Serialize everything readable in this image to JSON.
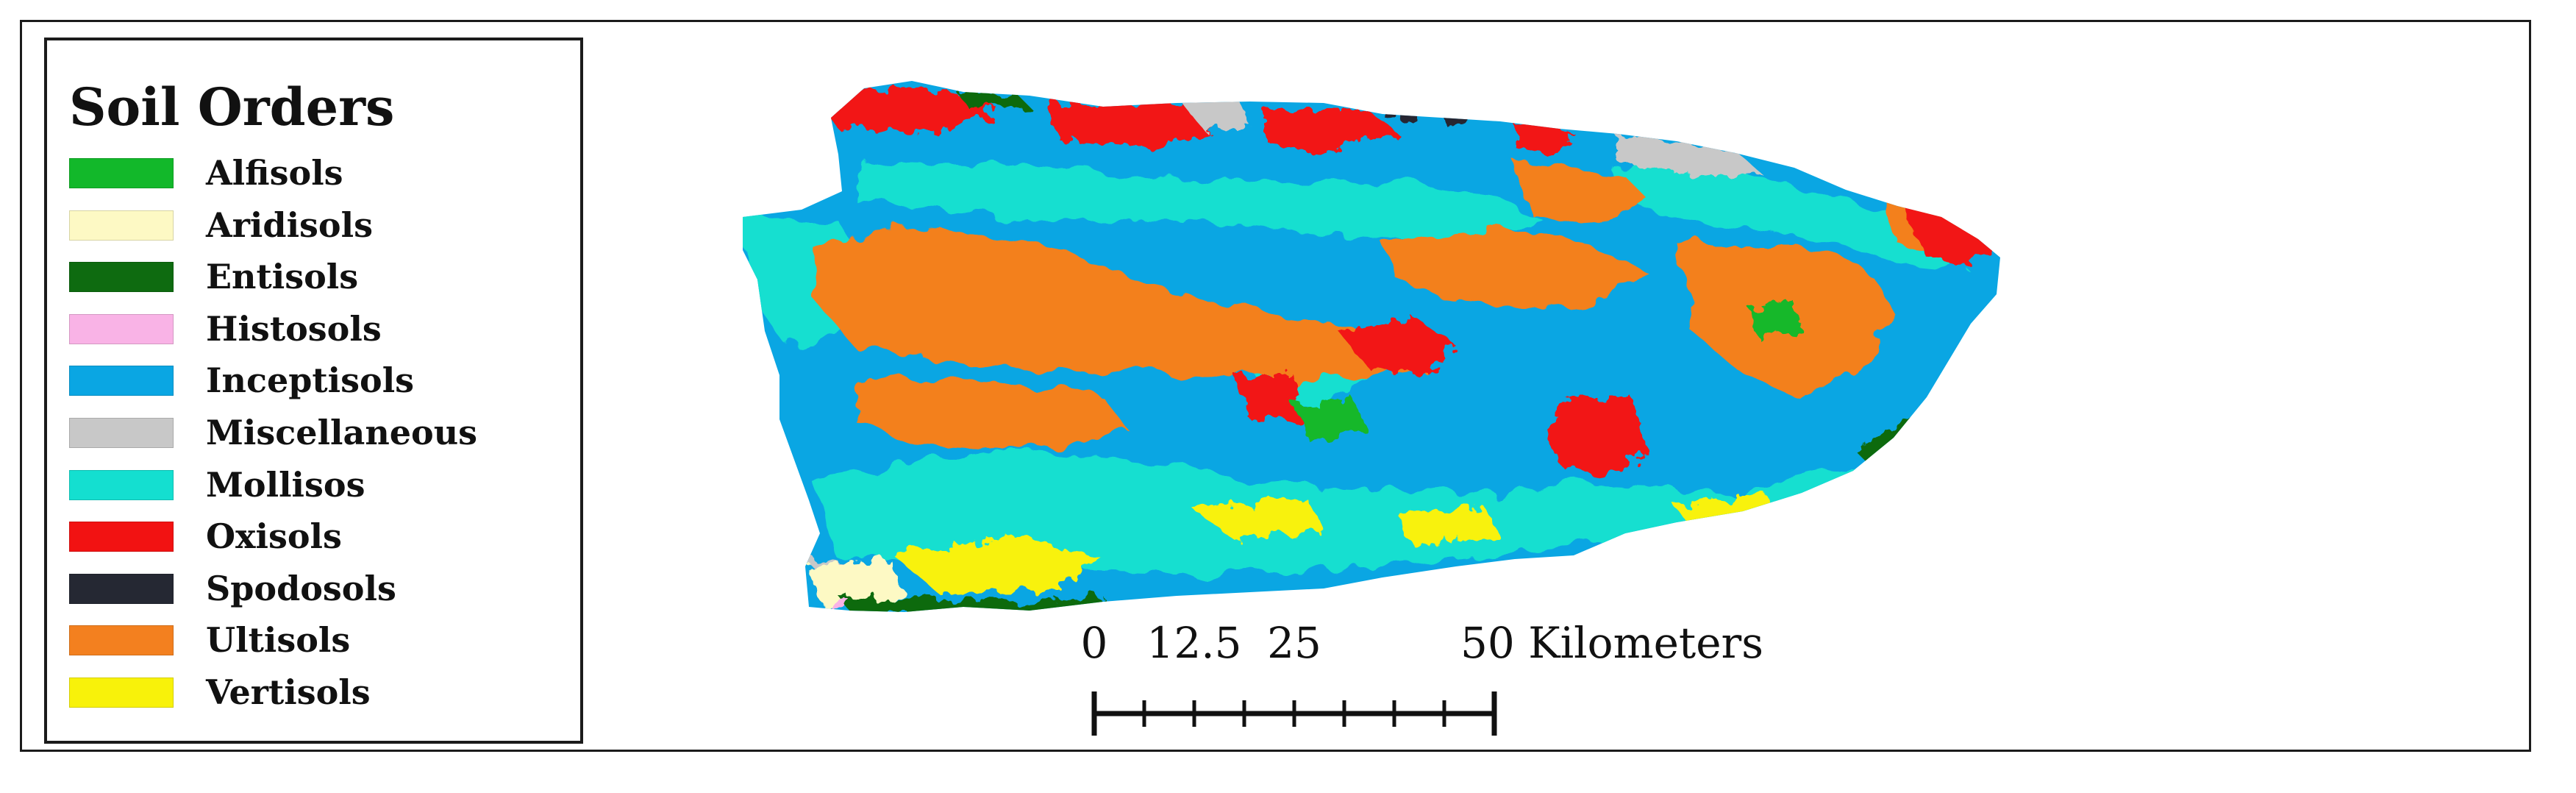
{
  "legend": {
    "title": "Soil Orders",
    "items": [
      {
        "label": "Alfisols",
        "color": "#12b82a"
      },
      {
        "label": "Aridisols",
        "color": "#fdf9c4"
      },
      {
        "label": "Entisols",
        "color": "#0e6b10"
      },
      {
        "label": "Histosols",
        "color": "#f9b3e6"
      },
      {
        "label": "Inceptisols",
        "color": "#0aa6e3"
      },
      {
        "label": "Miscellaneous",
        "color": "#c8c8c8"
      },
      {
        "label": "Mollisos",
        "color": "#14dfd0"
      },
      {
        "label": "Oxisols",
        "color": "#f21212"
      },
      {
        "label": "Spodosols",
        "color": "#252833"
      },
      {
        "label": "Ultisols",
        "color": "#f3801f"
      },
      {
        "label": "Vertisols",
        "color": "#f8f20a"
      }
    ]
  },
  "scale_bar": {
    "tick_labels": [
      "0",
      "12.5",
      "25",
      "50 Kilometers"
    ],
    "values_km": [
      0,
      12.5,
      25,
      50
    ],
    "max_km": 50,
    "minor_divisions": 8
  }
}
